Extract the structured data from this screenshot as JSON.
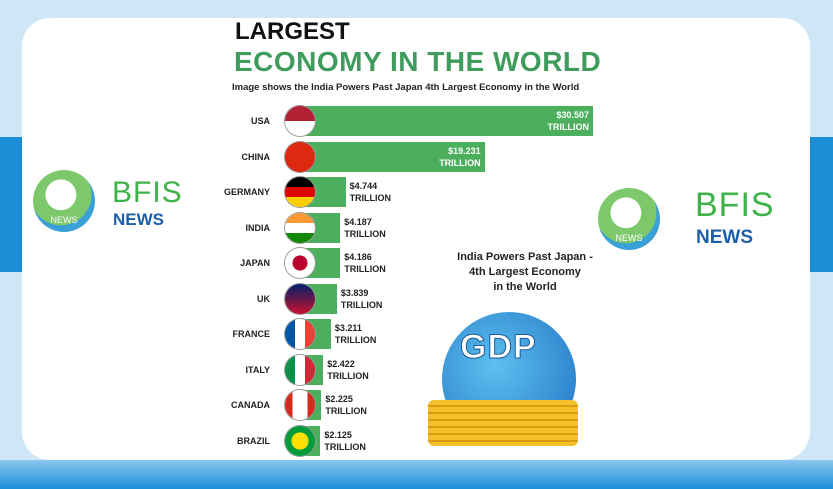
{
  "chart_data": {
    "type": "bar",
    "orientation": "horizontal",
    "title": [
      "LARGEST",
      "ECONOMY IN THE WORLD"
    ],
    "subtitle": "Image shows the India Powers Past Japan 4th Largest Economy in the World",
    "categories": [
      "USA",
      "CHINA",
      "GERMANY",
      "INDIA",
      "JAPAN",
      "UK",
      "FRANCE",
      "ITALY",
      "CANADA",
      "BRAZIL"
    ],
    "values": [
      30.507,
      19.231,
      4.744,
      4.187,
      4.186,
      3.839,
      3.211,
      2.422,
      2.225,
      2.125
    ],
    "value_labels": [
      "$30.507 TRILLION",
      "$19.231 TRILLION",
      "$4.744 TRILLION",
      "$4.187 TRILLION",
      "$4.186 TRILLION",
      "$3.839 TRILLION",
      "$3.211 TRILLION",
      "$2.422 TRILLION",
      "$2.225 TRILLION",
      "$2.125 TRILLION"
    ],
    "color": "#4caf5e",
    "annotation": [
      "India Powers Past Japan -",
      "4th Largest Economy",
      "in the World"
    ],
    "graphic_label": "GDP"
  },
  "logos": [
    {
      "name": "BFIS",
      "tag": "NEWS",
      "badge": "NEWS"
    },
    {
      "name": "BFIS",
      "tag": "NEWS",
      "badge": "NEWS"
    }
  ]
}
